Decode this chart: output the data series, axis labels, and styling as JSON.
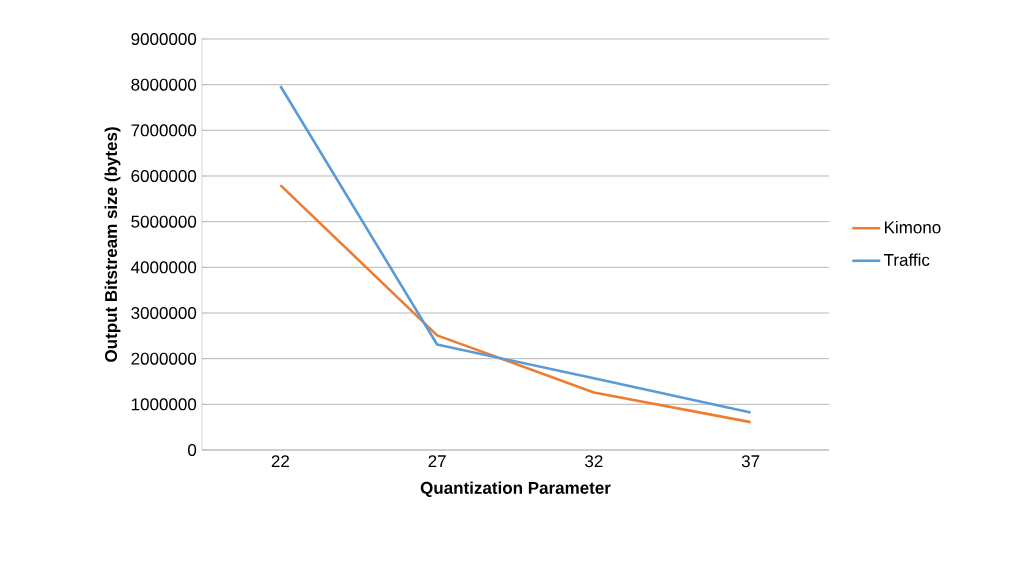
{
  "chart_data": {
    "type": "line",
    "xlabel": "Quantization Parameter",
    "ylabel": "Output Bitstream size (bytes)",
    "categories": [
      "22",
      "27",
      "32",
      "37"
    ],
    "series": [
      {
        "name": "Kimono",
        "color": "#ed7d31",
        "values": [
          5800000,
          2510000,
          1260000,
          610000
        ]
      },
      {
        "name": "Traffic",
        "color": "#5b9bd5",
        "values": [
          7970000,
          2310000,
          1570000,
          820000
        ]
      }
    ],
    "ylim": [
      0,
      9000000
    ],
    "yticks": [
      0,
      1000000,
      2000000,
      3000000,
      4000000,
      5000000,
      6000000,
      7000000,
      8000000,
      9000000
    ],
    "grid": "y",
    "legend": "right",
    "marker": "none",
    "line_style": "solid"
  }
}
